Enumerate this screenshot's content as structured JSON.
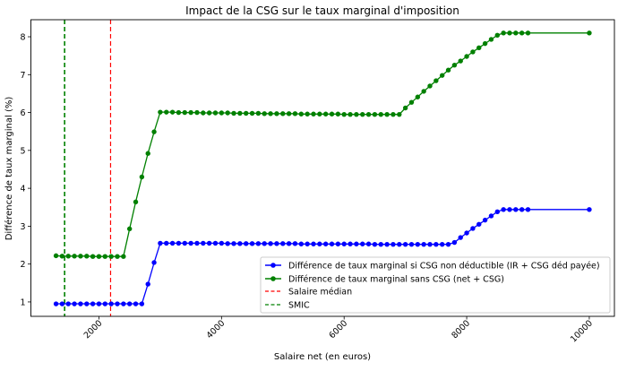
{
  "chart_data": {
    "type": "line",
    "title": "Impact de la CSG sur le taux marginal d'imposition",
    "xlabel": "Salaire net (en euros)",
    "ylabel": "Différence de taux marginal (%)",
    "xlim": [
      890,
      10410
    ],
    "ylim": [
      0.62,
      8.45
    ],
    "xticks": [
      2000,
      4000,
      6000,
      8000,
      10000
    ],
    "yticks": [
      1,
      2,
      3,
      4,
      5,
      6,
      7,
      8
    ],
    "grid": false,
    "legend_position": "bottom-right",
    "x": [
      1300,
      1400,
      1500,
      1600,
      1700,
      1800,
      1900,
      2000,
      2100,
      2200,
      2300,
      2400,
      2500,
      2600,
      2700,
      2800,
      2900,
      3000,
      3100,
      3200,
      3300,
      3400,
      3500,
      3600,
      3700,
      3800,
      3900,
      4000,
      4100,
      4200,
      4300,
      4400,
      4500,
      4600,
      4700,
      4800,
      4900,
      5000,
      5100,
      5200,
      5300,
      5400,
      5500,
      5600,
      5700,
      5800,
      5900,
      6000,
      6100,
      6200,
      6300,
      6400,
      6500,
      6600,
      6700,
      6800,
      6900,
      7000,
      7100,
      7200,
      7300,
      7400,
      7500,
      7600,
      7700,
      7800,
      7900,
      8000,
      8100,
      8200,
      8300,
      8400,
      8500,
      8600,
      8700,
      8800,
      8900,
      9000,
      10000
    ],
    "series": [
      {
        "name": "Différence de taux marginal si CSG non déductible (IR + CSG déd payée)",
        "color": "#0000ff",
        "style": "line-marker",
        "values": [
          0.95,
          0.95,
          0.95,
          0.95,
          0.95,
          0.95,
          0.95,
          0.95,
          0.95,
          0.95,
          0.95,
          0.95,
          0.95,
          0.95,
          0.95,
          1.47,
          2.04,
          2.55,
          2.55,
          2.55,
          2.55,
          2.55,
          2.55,
          2.55,
          2.55,
          2.55,
          2.55,
          2.55,
          2.54,
          2.54,
          2.54,
          2.54,
          2.54,
          2.54,
          2.54,
          2.54,
          2.54,
          2.54,
          2.54,
          2.54,
          2.53,
          2.53,
          2.53,
          2.53,
          2.53,
          2.53,
          2.53,
          2.53,
          2.53,
          2.53,
          2.53,
          2.53,
          2.52,
          2.52,
          2.52,
          2.52,
          2.52,
          2.52,
          2.52,
          2.52,
          2.52,
          2.52,
          2.52,
          2.52,
          2.52,
          2.57,
          2.7,
          2.82,
          2.94,
          3.05,
          3.16,
          3.27,
          3.38,
          3.44,
          3.44,
          3.44,
          3.44,
          3.44,
          3.44
        ]
      },
      {
        "name": "Différence de taux marginal sans CSG (net + CSG)",
        "color": "#008000",
        "style": "line-marker",
        "values": [
          2.22,
          2.21,
          2.21,
          2.21,
          2.21,
          2.21,
          2.2,
          2.2,
          2.2,
          2.2,
          2.2,
          2.2,
          2.93,
          3.64,
          4.3,
          4.92,
          5.49,
          6.01,
          6.01,
          6.01,
          6.0,
          6.0,
          6.0,
          6.0,
          5.99,
          5.99,
          5.99,
          5.99,
          5.99,
          5.98,
          5.98,
          5.98,
          5.98,
          5.98,
          5.97,
          5.97,
          5.97,
          5.97,
          5.97,
          5.97,
          5.96,
          5.96,
          5.96,
          5.96,
          5.96,
          5.96,
          5.96,
          5.95,
          5.95,
          5.95,
          5.95,
          5.95,
          5.95,
          5.95,
          5.95,
          5.95,
          5.95,
          6.12,
          6.27,
          6.41,
          6.56,
          6.7,
          6.84,
          6.98,
          7.12,
          7.25,
          7.36,
          7.48,
          7.6,
          7.71,
          7.82,
          7.93,
          8.04,
          8.1,
          8.1,
          8.1,
          8.1,
          8.1,
          8.1
        ]
      }
    ],
    "vlines": [
      {
        "name": "Salaire médian",
        "x": 2190,
        "color": "#ff0000",
        "style": "dashed"
      },
      {
        "name": "SMIC",
        "x": 1440,
        "color": "#008000",
        "style": "dashed"
      }
    ]
  }
}
